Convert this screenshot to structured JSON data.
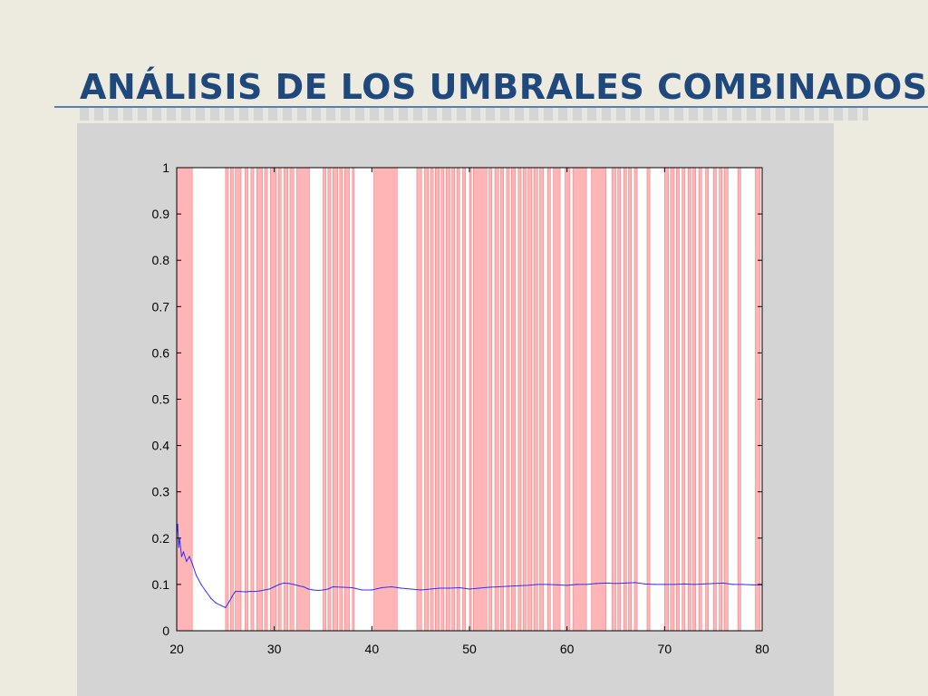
{
  "slide": {
    "title": "ANÁLISIS DE LOS UMBRALES COMBINADOS"
  },
  "colors": {
    "title": "#1f497d",
    "band_fill": "#ff9c9c",
    "band_line": "#e05050",
    "series": "#3030ff",
    "panel": "#d4d4d4",
    "background": "#edeae0"
  },
  "chart_data": {
    "type": "line",
    "title": "",
    "xlabel": "",
    "ylabel": "",
    "xlim": [
      20,
      80
    ],
    "ylim": [
      0,
      1
    ],
    "xticks": [
      20,
      30,
      40,
      50,
      60,
      70,
      80
    ],
    "yticks": [
      0,
      0.1,
      0.2,
      0.3,
      0.4,
      0.5,
      0.6,
      0.7,
      0.8,
      0.9,
      1
    ],
    "xtick_labels": [
      "20",
      "30",
      "40",
      "50",
      "60",
      "70",
      "80"
    ],
    "ytick_labels": [
      "0",
      "0.1",
      "0.2",
      "0.3",
      "0.4",
      "0.5",
      "0.6",
      "0.7",
      "0.8",
      "0.9",
      "1"
    ],
    "grid": false,
    "highlight_bands": [
      [
        20.0,
        21.6
      ],
      [
        25.0,
        25.3
      ],
      [
        25.5,
        25.8
      ],
      [
        26.0,
        26.6
      ],
      [
        27.0,
        27.3
      ],
      [
        27.6,
        27.9
      ],
      [
        28.2,
        28.8
      ],
      [
        29.0,
        29.3
      ],
      [
        29.6,
        30.2
      ],
      [
        30.4,
        30.7
      ],
      [
        31.0,
        31.4
      ],
      [
        31.6,
        32.0
      ],
      [
        32.3,
        33.6
      ],
      [
        35.0,
        35.3
      ],
      [
        35.5,
        35.8
      ],
      [
        36.0,
        36.5
      ],
      [
        36.7,
        37.0
      ],
      [
        37.2,
        37.7
      ],
      [
        38.0,
        38.2
      ],
      [
        40.2,
        42.6
      ],
      [
        44.6,
        45.1
      ],
      [
        45.4,
        45.8
      ],
      [
        46.0,
        46.3
      ],
      [
        46.5,
        46.9
      ],
      [
        47.1,
        47.4
      ],
      [
        47.6,
        48.0
      ],
      [
        48.2,
        48.5
      ],
      [
        48.7,
        49.0
      ],
      [
        49.3,
        49.6
      ],
      [
        50.0,
        50.2
      ],
      [
        50.4,
        51.8
      ],
      [
        52.0,
        52.3
      ],
      [
        52.6,
        53.0
      ],
      [
        53.2,
        53.5
      ],
      [
        53.8,
        54.1
      ],
      [
        54.3,
        54.7
      ],
      [
        55.0,
        55.3
      ],
      [
        55.5,
        55.8
      ],
      [
        56.0,
        56.4
      ],
      [
        56.6,
        57.0
      ],
      [
        57.2,
        57.6
      ],
      [
        58.0,
        58.3
      ],
      [
        58.6,
        59.3
      ],
      [
        59.8,
        60.3
      ],
      [
        60.6,
        62.0
      ],
      [
        62.5,
        64.0
      ],
      [
        64.6,
        65.0
      ],
      [
        65.2,
        65.5
      ],
      [
        65.8,
        66.1
      ],
      [
        66.3,
        66.6
      ],
      [
        66.9,
        67.2
      ],
      [
        68.2,
        68.5
      ],
      [
        70.0,
        70.4
      ],
      [
        70.6,
        71.0
      ],
      [
        71.2,
        71.5
      ],
      [
        71.8,
        72.1
      ],
      [
        72.4,
        72.7
      ],
      [
        72.9,
        73.2
      ],
      [
        73.5,
        73.8
      ],
      [
        74.2,
        74.5
      ],
      [
        75.0,
        75.3
      ],
      [
        75.6,
        75.9
      ],
      [
        76.1,
        76.5
      ],
      [
        77.5,
        77.8
      ],
      [
        79.3,
        79.8
      ]
    ],
    "series": [
      {
        "x": [
          20.0,
          20.1,
          20.2,
          20.3,
          20.5,
          20.7,
          21.0,
          21.3,
          21.6,
          22.0,
          22.5,
          23.0,
          23.5,
          24.0,
          24.5,
          25.0,
          25.3,
          25.7,
          26.0,
          26.5,
          27.0,
          27.5,
          28.0,
          28.5,
          29.0,
          29.5,
          30.0,
          30.5,
          31.0,
          31.5,
          32.0,
          32.5,
          33.0,
          33.5,
          34.0,
          34.5,
          35.0,
          35.5,
          36.0,
          37.0,
          38.0,
          39.0,
          40.0,
          41.0,
          42.0,
          43.0,
          44.0,
          45.0,
          46.0,
          47.0,
          48.0,
          49.0,
          50.0,
          51.0,
          52.0,
          53.0,
          54.0,
          55.0,
          56.0,
          57.0,
          58.0,
          59.0,
          60.0,
          61.0,
          62.0,
          63.0,
          64.0,
          65.0,
          66.0,
          67.0,
          68.0,
          69.0,
          70.0,
          71.0,
          72.0,
          73.0,
          74.0,
          75.0,
          76.0,
          77.0,
          78.0,
          79.0,
          80.0
        ],
        "y": [
          0.21,
          0.23,
          0.18,
          0.2,
          0.16,
          0.17,
          0.15,
          0.16,
          0.145,
          0.12,
          0.1,
          0.085,
          0.07,
          0.06,
          0.055,
          0.05,
          0.06,
          0.075,
          0.085,
          0.085,
          0.084,
          0.085,
          0.085,
          0.086,
          0.088,
          0.09,
          0.095,
          0.1,
          0.103,
          0.102,
          0.1,
          0.097,
          0.095,
          0.09,
          0.088,
          0.087,
          0.088,
          0.09,
          0.095,
          0.094,
          0.093,
          0.088,
          0.088,
          0.093,
          0.095,
          0.092,
          0.09,
          0.088,
          0.09,
          0.092,
          0.092,
          0.093,
          0.09,
          0.092,
          0.094,
          0.095,
          0.096,
          0.097,
          0.098,
          0.1,
          0.1,
          0.099,
          0.098,
          0.1,
          0.1,
          0.102,
          0.103,
          0.102,
          0.103,
          0.104,
          0.101,
          0.1,
          0.1,
          0.1,
          0.101,
          0.1,
          0.101,
          0.102,
          0.103,
          0.1,
          0.1,
          0.099,
          0.099
        ]
      }
    ]
  }
}
